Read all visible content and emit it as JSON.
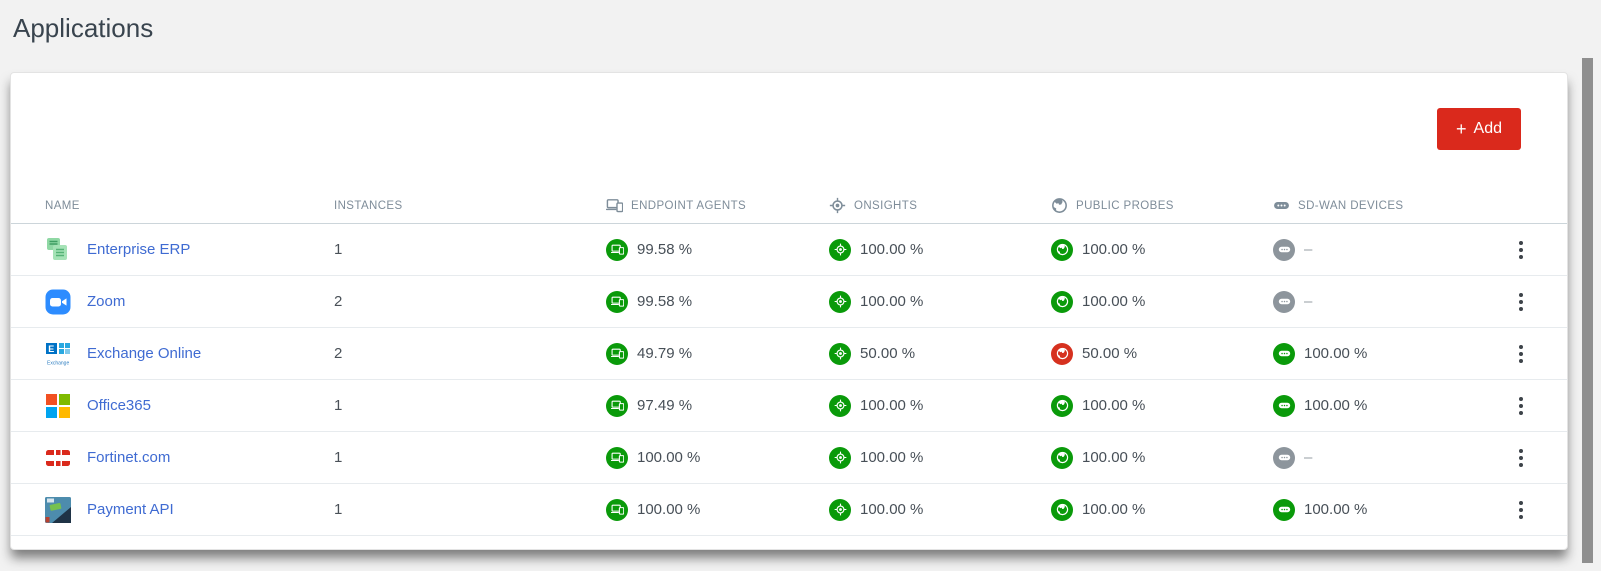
{
  "page": {
    "title": "Applications"
  },
  "toolbar": {
    "add_plus": "+",
    "add_label": "Add"
  },
  "colors": {
    "accent_red": "#da291c",
    "link_blue": "#3f6bd2",
    "header_gray": "#7e8c99",
    "status": {
      "ok": "#0a9a0a",
      "critical": "#d6311f",
      "none": "#8d959c"
    }
  },
  "table": {
    "columns": [
      {
        "key": "name",
        "label": "NAME",
        "icon": null
      },
      {
        "key": "instances",
        "label": "INSTANCES",
        "icon": null
      },
      {
        "key": "endpoint_agents",
        "label": "ENDPOINT AGENTS",
        "icon": "devices-icon"
      },
      {
        "key": "onsights",
        "label": "ONSIGHTS",
        "icon": "onsight-target-icon"
      },
      {
        "key": "public_probes",
        "label": "PUBLIC PROBES",
        "icon": "globe-icon"
      },
      {
        "key": "sd_wan_devices",
        "label": "SD-WAN DEVICES",
        "icon": "sdwan-router-icon"
      }
    ],
    "rows": [
      {
        "name": "Enterprise ERP",
        "icon": "enterprise-erp-icon",
        "instances": "1",
        "endpoint_agents": {
          "value": "99.58 %",
          "status": "ok"
        },
        "onsights": {
          "value": "100.00 %",
          "status": "ok"
        },
        "public_probes": {
          "value": "100.00 %",
          "status": "ok"
        },
        "sd_wan_devices": {
          "value": "–",
          "status": "none"
        }
      },
      {
        "name": "Zoom",
        "icon": "zoom-icon",
        "instances": "2",
        "endpoint_agents": {
          "value": "99.58 %",
          "status": "ok"
        },
        "onsights": {
          "value": "100.00 %",
          "status": "ok"
        },
        "public_probes": {
          "value": "100.00 %",
          "status": "ok"
        },
        "sd_wan_devices": {
          "value": "–",
          "status": "none"
        }
      },
      {
        "name": "Exchange Online",
        "icon": "exchange-online-icon",
        "instances": "2",
        "endpoint_agents": {
          "value": "49.79 %",
          "status": "ok"
        },
        "onsights": {
          "value": "50.00 %",
          "status": "ok"
        },
        "public_probes": {
          "value": "50.00 %",
          "status": "critical"
        },
        "sd_wan_devices": {
          "value": "100.00 %",
          "status": "ok"
        }
      },
      {
        "name": "Office365",
        "icon": "office365-icon",
        "instances": "1",
        "endpoint_agents": {
          "value": "97.49 %",
          "status": "ok"
        },
        "onsights": {
          "value": "100.00 %",
          "status": "ok"
        },
        "public_probes": {
          "value": "100.00 %",
          "status": "ok"
        },
        "sd_wan_devices": {
          "value": "100.00 %",
          "status": "ok"
        }
      },
      {
        "name": "Fortinet.com",
        "icon": "fortinet-icon",
        "instances": "1",
        "endpoint_agents": {
          "value": "100.00 %",
          "status": "ok"
        },
        "onsights": {
          "value": "100.00 %",
          "status": "ok"
        },
        "public_probes": {
          "value": "100.00 %",
          "status": "ok"
        },
        "sd_wan_devices": {
          "value": "–",
          "status": "none"
        }
      },
      {
        "name": "Payment API",
        "icon": "payment-api-icon",
        "instances": "1",
        "endpoint_agents": {
          "value": "100.00 %",
          "status": "ok"
        },
        "onsights": {
          "value": "100.00 %",
          "status": "ok"
        },
        "public_probes": {
          "value": "100.00 %",
          "status": "ok"
        },
        "sd_wan_devices": {
          "value": "100.00 %",
          "status": "ok"
        }
      }
    ]
  }
}
